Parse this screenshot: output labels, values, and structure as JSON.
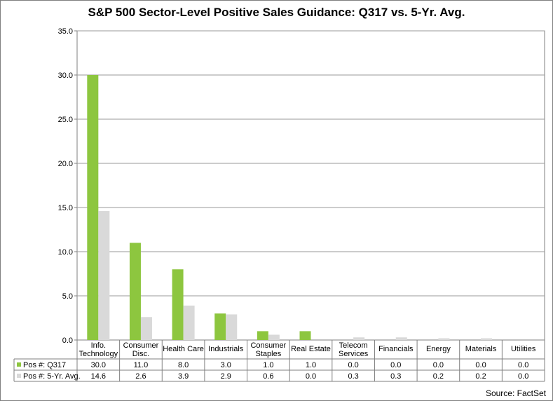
{
  "chart_data": {
    "type": "bar",
    "title": "S&P 500 Sector-Level Positive Sales Guidance: Q317 vs. 5-Yr. Avg.",
    "categories": [
      [
        "Info.",
        "Technology"
      ],
      [
        "Consumer",
        "Disc."
      ],
      [
        "Health Care"
      ],
      [
        "Industrials"
      ],
      [
        "Consumer",
        "Staples"
      ],
      [
        "Real Estate"
      ],
      [
        "Telecom",
        "Services"
      ],
      [
        "Financials"
      ],
      [
        "Energy"
      ],
      [
        "Materials"
      ],
      [
        "Utilities"
      ]
    ],
    "series": [
      {
        "name": "Pos #: Q317",
        "color": "#8dc63f",
        "values": [
          30.0,
          11.0,
          8.0,
          3.0,
          1.0,
          1.0,
          0.0,
          0.0,
          0.0,
          0.0,
          0.0
        ],
        "labels": [
          "30.0",
          "11.0",
          "8.0",
          "3.0",
          "1.0",
          "1.0",
          "0.0",
          "0.0",
          "0.0",
          "0.0",
          "0.0"
        ]
      },
      {
        "name": "Pos #: 5-Yr. Avg.",
        "color": "#d9d9d9",
        "values": [
          14.6,
          2.6,
          3.9,
          2.9,
          0.6,
          0.0,
          0.3,
          0.3,
          0.2,
          0.2,
          0.0
        ],
        "labels": [
          "14.6",
          "2.6",
          "3.9",
          "2.9",
          "0.6",
          "0.0",
          "0.3",
          "0.3",
          "0.2",
          "0.2",
          "0.0"
        ]
      }
    ],
    "ylim": [
      0,
      35
    ],
    "yticks": [
      "0.0",
      "5.0",
      "10.0",
      "15.0",
      "20.0",
      "25.0",
      "30.0",
      "35.0"
    ],
    "ytick_values": [
      0,
      5,
      10,
      15,
      20,
      25,
      30,
      35
    ],
    "grid": true,
    "legend": "data-table"
  },
  "source": "Source: FactSet"
}
